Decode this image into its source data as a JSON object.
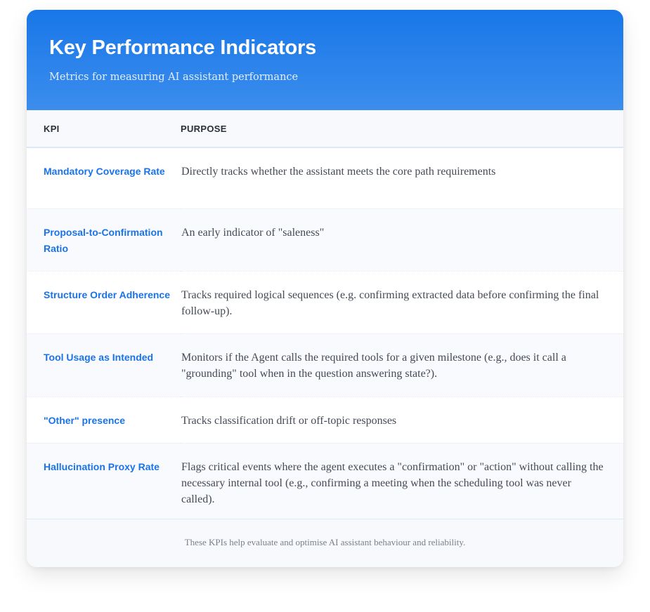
{
  "header": {
    "title": "Key Performance Indicators",
    "subtitle": "Metrics for measuring AI assistant performance"
  },
  "table": {
    "columns": [
      "KPI",
      "PURPOSE"
    ],
    "rows": [
      {
        "kpi": "Mandatory Coverage Rate",
        "purpose": "Directly tracks whether the assistant meets the core path requirements"
      },
      {
        "kpi": "Proposal-to-Confirmation Ratio",
        "purpose": "An early indicator of \"saleness\""
      },
      {
        "kpi": "Structure Order Adherence",
        "purpose": "Tracks required logical sequences (e.g. confirming extracted data before confirming the final follow-up)."
      },
      {
        "kpi": "Tool Usage as Intended",
        "purpose": "Monitors if the Agent calls the required tools for a given milestone (e.g., does it call a \"grounding\" tool when in the question answering state?)."
      },
      {
        "kpi": "\"Other\" presence",
        "purpose": "Tracks classification drift or off-topic responses"
      },
      {
        "kpi": "Hallucination Proxy Rate",
        "purpose": "Flags critical events where the agent executes a \"confirmation\" or \"action\" without calling the necessary internal tool (e.g., confirming a meeting when the scheduling tool was never called)."
      }
    ]
  },
  "footer": {
    "note": "These KPIs help evaluate and optimise AI assistant behaviour and reliability."
  },
  "colors": {
    "accent": "#1a73e8",
    "header_gradient_top": "#1877e8",
    "header_gradient_bottom": "#3c8ded"
  }
}
